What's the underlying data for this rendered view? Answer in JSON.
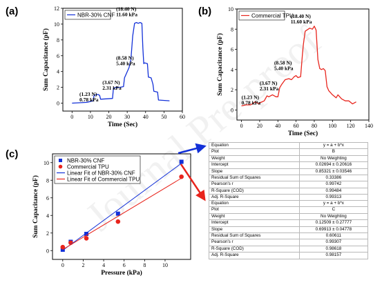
{
  "panel_labels": {
    "a": "(a)",
    "b": "(b)",
    "c": "(c)"
  },
  "watermark": "Journal Pre-proof",
  "colors": {
    "blue": "#1230d8",
    "red": "#e8241c",
    "axis": "#000000"
  },
  "chart_data": [
    {
      "id": "a",
      "type": "line",
      "xlabel": "Time (Sec)",
      "ylabel": "Sum Capacitance (pF)",
      "xlim": [
        -5,
        60
      ],
      "ylim": [
        -1,
        12
      ],
      "xticks": [
        0,
        10,
        20,
        30,
        40,
        50,
        60
      ],
      "yticks": [
        0,
        2,
        4,
        6,
        8,
        10,
        12
      ],
      "legend": {
        "position": "top-left",
        "entries": [
          "NBR-30% CNF"
        ]
      },
      "annotations": [
        {
          "line1": "(1.23 N)",
          "line2": "0.78 kPa",
          "x": 4,
          "y": 0.9
        },
        {
          "line1": "(3.67 N)",
          "line2": "2.31 kPa",
          "x": 16.5,
          "y": 2.4
        },
        {
          "line1": "(8.58 N)",
          "line2": "5.40 kPa",
          "x": 24,
          "y": 5.5
        },
        {
          "line1": "(18.40 N)",
          "line2": "11.60 kPa",
          "x": 24,
          "y": 11.7
        }
      ],
      "series": [
        {
          "name": "NBR-30% CNF",
          "color": "#1230d8",
          "x": [
            0,
            8,
            11.5,
            12,
            14,
            15,
            15.5,
            22,
            22.5,
            24,
            26,
            28,
            28.5,
            31,
            32,
            33,
            34,
            35,
            36,
            37,
            38,
            38.5,
            39,
            39.5,
            41,
            41.5,
            43,
            44,
            44.5,
            46.5,
            47,
            53
          ],
          "y": [
            0,
            0.1,
            0.3,
            1.0,
            1.1,
            1.0,
            0.5,
            0.6,
            1.9,
            2.0,
            2.0,
            2.1,
            3.2,
            4.5,
            5.5,
            8.5,
            10.1,
            10.2,
            10.1,
            10.2,
            10.1,
            7.0,
            5.0,
            5.1,
            5.0,
            3.3,
            3.2,
            2.4,
            1.5,
            1.4,
            0.4,
            0.3
          ]
        }
      ]
    },
    {
      "id": "b",
      "type": "line",
      "xlabel": "Time (Sec)",
      "ylabel": "Sum Capacitance (pF)",
      "xlim": [
        -5,
        140
      ],
      "ylim": [
        -1,
        10
      ],
      "xticks": [
        0,
        20,
        40,
        60,
        80,
        100,
        120,
        140
      ],
      "yticks": [
        0,
        2,
        4,
        6,
        8,
        10
      ],
      "legend": {
        "position": "top-left",
        "entries": [
          "Commercial TPU"
        ]
      },
      "annotations": [
        {
          "line1": "(1.23 N)",
          "line2": "0.78 kPa",
          "x": 0,
          "y": 1.1
        },
        {
          "line1": "(3.67 N)",
          "line2": "2.31 kPa",
          "x": 20,
          "y": 2.5
        },
        {
          "line1": "(8.58 N)",
          "line2": "5.40 kPa",
          "x": 36,
          "y": 4.5
        },
        {
          "line1": "(18.40 N)",
          "line2": "11.60 kPa",
          "x": 54,
          "y": 9.1
        }
      ],
      "series": [
        {
          "name": "Commercial TPU",
          "color": "#e8241c",
          "x": [
            0,
            5,
            10,
            15,
            19,
            20,
            25,
            28,
            30,
            34,
            38,
            40,
            42,
            44,
            48,
            52,
            55,
            57,
            58,
            60,
            62,
            65,
            67,
            68,
            70,
            75,
            78,
            80,
            82,
            84,
            86,
            88,
            90,
            92,
            94,
            96,
            100,
            104,
            106,
            110,
            114,
            118,
            122,
            126
          ],
          "y": [
            0.4,
            0.5,
            0.5,
            0.8,
            0.6,
            0.7,
            0.9,
            1.4,
            1.3,
            1.5,
            1.3,
            1.3,
            2.2,
            2.5,
            3.0,
            3.1,
            3.0,
            3.2,
            3.3,
            3.4,
            3.2,
            3.3,
            5.5,
            6.5,
            7.8,
            8.1,
            8.0,
            8.3,
            7.9,
            5.0,
            4.1,
            4.0,
            4.1,
            3.9,
            2.3,
            1.9,
            1.5,
            1.2,
            1.5,
            1.1,
            0.9,
            0.9,
            0.6,
            0.8
          ]
        }
      ]
    },
    {
      "id": "c",
      "type": "scatter",
      "xlabel": "Pressure (kPa)",
      "ylabel": "Sum Capacitance (pF)",
      "xlim": [
        -1,
        12.5
      ],
      "ylim": [
        -1,
        11
      ],
      "xticks": [
        0,
        2,
        4,
        6,
        8,
        10
      ],
      "yticks": [
        0,
        2,
        4,
        6,
        8,
        10
      ],
      "legend": {
        "position": "top-left",
        "entries": [
          "NBR-30% CNF",
          "Commercial TPU",
          "Linear Fit of NBR-30% CNF",
          "Linear Fit of Commercial TPU"
        ]
      },
      "series": [
        {
          "name": "NBR-30% CNF",
          "color": "#1230d8",
          "marker": "square",
          "x": [
            0,
            0.78,
            2.31,
            5.4,
            11.6
          ],
          "y": [
            0.1,
            1.0,
            1.9,
            4.2,
            10.1
          ]
        },
        {
          "name": "Commercial TPU",
          "color": "#e8241c",
          "marker": "circle",
          "x": [
            0,
            0.78,
            2.31,
            5.4,
            11.6
          ],
          "y": [
            0.4,
            0.9,
            1.4,
            3.3,
            8.4
          ]
        },
        {
          "name": "Linear Fit of NBR-30% CNF",
          "color": "#1230d8",
          "type": "line",
          "intercept": 0.02694,
          "slope": 0.85321,
          "x": [
            0,
            11.6
          ]
        },
        {
          "name": "Linear Fit of Commercial TPU",
          "color": "#e8241c",
          "type": "line",
          "intercept": 0.12509,
          "slope": 0.69913,
          "x": [
            0,
            11.6
          ]
        }
      ]
    }
  ],
  "fit_tables": [
    {
      "rows": [
        {
          "label": "Equation",
          "value": "y = a + b*x"
        },
        {
          "label": "Plot",
          "value": "B"
        },
        {
          "label": "Weight",
          "value": "No Weighting"
        },
        {
          "label": "Intercept",
          "value": "0.02694 ± 0.20616"
        },
        {
          "label": "Slope",
          "value": "0.85321 ± 0.03546"
        },
        {
          "label": "Residual Sum of Squares",
          "value": "0.33386"
        },
        {
          "label": "Pearson's r",
          "value": "0.99742"
        },
        {
          "label": "R-Square (COD)",
          "value": "0.99484"
        },
        {
          "label": "Adj. R-Square",
          "value": "0.99313"
        }
      ]
    },
    {
      "rows": [
        {
          "label": "Equation",
          "value": "y = a + b*x"
        },
        {
          "label": "Plot",
          "value": "C"
        },
        {
          "label": "Weight",
          "value": "No Weighting"
        },
        {
          "label": "Intercept",
          "value": "0.12509 ± 0.27777"
        },
        {
          "label": "Slope",
          "value": "0.69913 ± 0.04778"
        },
        {
          "label": "Residual Sum of Squares",
          "value": "0.60611"
        },
        {
          "label": "Pearson's r",
          "value": "0.99307"
        },
        {
          "label": "R-Square (COD)",
          "value": "0.98618"
        },
        {
          "label": "Adj. R-Square",
          "value": "0.98157"
        }
      ]
    }
  ]
}
